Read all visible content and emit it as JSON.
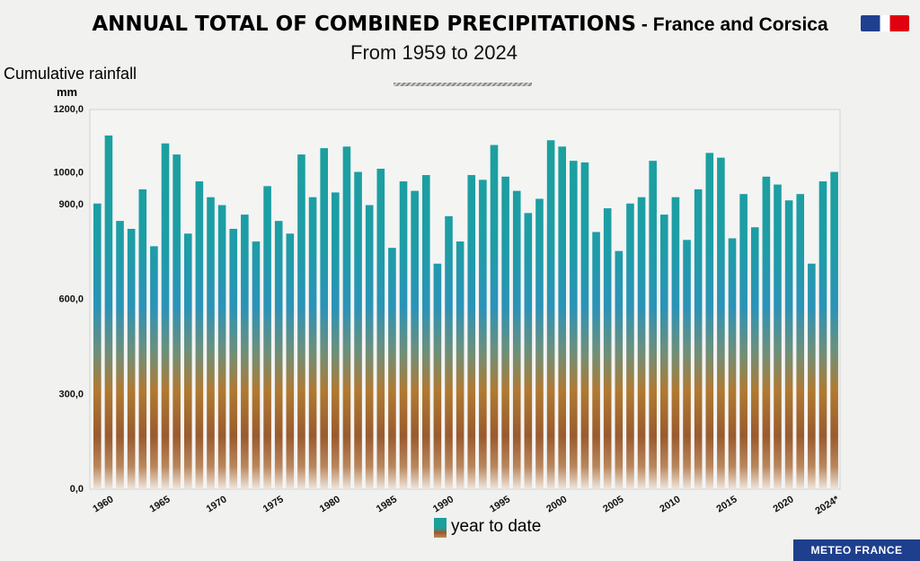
{
  "header": {
    "title_main": "ANNUAL TOTAL OF COMBINED PRECIPITATIONS",
    "title_sep": " - ",
    "title_region": "France and Corsica",
    "subtitle": "From 1959 to 2024"
  },
  "axis": {
    "ylabel": "Cumulative rainfall",
    "yunit": "mm"
  },
  "legend": {
    "label": "year to date"
  },
  "footer": {
    "badge": "METEO FRANCE"
  },
  "colors": {
    "bar_top": "#1aa19b",
    "bar_mid": "#2b93b8",
    "bar_low": "#b07a32",
    "bar_bottom": "#9a5b2e",
    "flag_blue": "#1f3f8f",
    "flag_red": "#e1000f",
    "footer_bg": "#1d3f8d"
  },
  "chart_data": {
    "type": "bar",
    "title": "ANNUAL TOTAL OF COMBINED PRECIPITATIONS - France and Corsica",
    "subtitle": "From 1959 to 2024",
    "ylabel": "Cumulative rainfall",
    "yunit": "mm",
    "xlabel": "",
    "ylim": [
      0,
      1200
    ],
    "y_ticks": [
      0,
      300,
      600,
      900,
      1000,
      1200
    ],
    "y_tick_labels": [
      "0,0",
      "300,0",
      "600,0",
      "900,0",
      "1000,0",
      "1200,0"
    ],
    "x_tick_labels": [
      "1960",
      "1965",
      "1970",
      "1975",
      "1980",
      "1985",
      "1990",
      "1995",
      "2000",
      "2005",
      "2010",
      "2015",
      "2020",
      "2024*"
    ],
    "x_tick_years": [
      1960,
      1965,
      1970,
      1975,
      1980,
      1985,
      1990,
      1995,
      2000,
      2005,
      2010,
      2015,
      2020,
      2024
    ],
    "grid": false,
    "legend": "bottom-center",
    "categories": [
      1959,
      1960,
      1961,
      1962,
      1963,
      1964,
      1965,
      1966,
      1967,
      1968,
      1969,
      1970,
      1971,
      1972,
      1973,
      1974,
      1975,
      1976,
      1977,
      1978,
      1979,
      1980,
      1981,
      1982,
      1983,
      1984,
      1985,
      1986,
      1987,
      1988,
      1989,
      1990,
      1991,
      1992,
      1993,
      1994,
      1995,
      1996,
      1997,
      1998,
      1999,
      2000,
      2001,
      2002,
      2003,
      2004,
      2005,
      2006,
      2007,
      2008,
      2009,
      2010,
      2011,
      2012,
      2013,
      2014,
      2015,
      2016,
      2017,
      2018,
      2019,
      2020,
      2021,
      2022,
      2023,
      2024
    ],
    "values": [
      900,
      1115,
      845,
      820,
      945,
      765,
      1090,
      1055,
      805,
      970,
      920,
      895,
      820,
      865,
      780,
      955,
      845,
      805,
      1055,
      920,
      1075,
      935,
      1080,
      1000,
      895,
      1010,
      760,
      970,
      940,
      990,
      710,
      860,
      780,
      990,
      975,
      1085,
      985,
      940,
      870,
      915,
      1100,
      1080,
      1035,
      1030,
      810,
      885,
      750,
      900,
      920,
      1035,
      865,
      920,
      785,
      945,
      1060,
      1045,
      790,
      930,
      825,
      985,
      960,
      910,
      930,
      710,
      970,
      1000
    ],
    "series": [
      {
        "name": "year to date",
        "values": [
          900,
          1115,
          845,
          820,
          945,
          765,
          1090,
          1055,
          805,
          970,
          920,
          895,
          820,
          865,
          780,
          955,
          845,
          805,
          1055,
          920,
          1075,
          935,
          1080,
          1000,
          895,
          1010,
          760,
          970,
          940,
          990,
          710,
          860,
          780,
          990,
          975,
          1085,
          985,
          940,
          870,
          915,
          1100,
          1080,
          1035,
          1030,
          810,
          885,
          750,
          900,
          920,
          1035,
          865,
          920,
          785,
          945,
          1060,
          1045,
          790,
          930,
          825,
          985,
          960,
          910,
          930,
          710,
          970,
          1000
        ]
      }
    ]
  }
}
